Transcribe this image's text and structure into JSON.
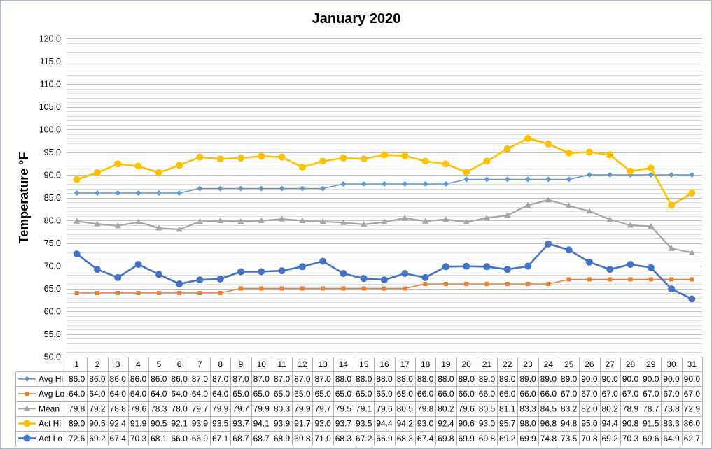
{
  "chart_data": {
    "type": "line",
    "title": "January 2020",
    "xlabel": "",
    "ylabel": "Temperature °F",
    "ylim": [
      50,
      120
    ],
    "ytick_labels": [
      "50.0",
      "55.0",
      "60.0",
      "65.0",
      "70.0",
      "75.0",
      "80.0",
      "85.0",
      "90.0",
      "95.0",
      "100.0",
      "105.0",
      "110.0",
      "115.0",
      "120.0"
    ],
    "grid": {
      "major": true,
      "minor": true
    },
    "data_table": true,
    "legend_placement": "bottom",
    "categories": [
      "1",
      "2",
      "3",
      "4",
      "5",
      "6",
      "7",
      "8",
      "9",
      "10",
      "11",
      "12",
      "13",
      "14",
      "15",
      "16",
      "17",
      "18",
      "19",
      "20",
      "21",
      "22",
      "23",
      "24",
      "25",
      "26",
      "27",
      "28",
      "29",
      "30",
      "31"
    ],
    "series": [
      {
        "name": "Avg Hi",
        "color": "#5B9BD5",
        "marker": "diamond",
        "values": [
          86.0,
          86.0,
          86.0,
          86.0,
          86.0,
          86.0,
          87.0,
          87.0,
          87.0,
          87.0,
          87.0,
          87.0,
          87.0,
          88.0,
          88.0,
          88.0,
          88.0,
          88.0,
          88.0,
          89.0,
          89.0,
          89.0,
          89.0,
          89.0,
          89.0,
          90.0,
          90.0,
          90.0,
          90.0,
          90.0,
          90.0
        ]
      },
      {
        "name": "Avg Lo",
        "color": "#ED7D31",
        "marker": "square",
        "values": [
          64.0,
          64.0,
          64.0,
          64.0,
          64.0,
          64.0,
          64.0,
          64.0,
          65.0,
          65.0,
          65.0,
          65.0,
          65.0,
          65.0,
          65.0,
          65.0,
          65.0,
          66.0,
          66.0,
          66.0,
          66.0,
          66.0,
          66.0,
          66.0,
          67.0,
          67.0,
          67.0,
          67.0,
          67.0,
          67.0,
          67.0
        ]
      },
      {
        "name": "Mean",
        "color": "#A5A5A5",
        "marker": "triangle",
        "values": [
          79.8,
          79.2,
          78.8,
          79.6,
          78.3,
          78.0,
          79.7,
          79.9,
          79.7,
          79.9,
          80.3,
          79.9,
          79.7,
          79.5,
          79.1,
          79.6,
          80.5,
          79.8,
          80.2,
          79.6,
          80.5,
          81.1,
          83.3,
          84.5,
          83.2,
          82.0,
          80.2,
          78.9,
          78.7,
          73.8,
          72.9
        ]
      },
      {
        "name": "Act Hi",
        "color": "#FFC000",
        "marker": "circle",
        "values": [
          89.0,
          90.5,
          92.4,
          91.9,
          90.5,
          92.1,
          93.9,
          93.5,
          93.7,
          94.1,
          93.9,
          91.7,
          93.0,
          93.7,
          93.5,
          94.4,
          94.2,
          93.0,
          92.4,
          90.6,
          93.0,
          95.7,
          98.0,
          96.8,
          94.8,
          95.0,
          94.4,
          90.8,
          91.5,
          83.3,
          86.0
        ]
      },
      {
        "name": "Act Lo",
        "color": "#4472C4",
        "marker": "circle",
        "values": [
          72.6,
          69.2,
          67.4,
          70.3,
          68.1,
          66.0,
          66.9,
          67.1,
          68.7,
          68.7,
          68.9,
          69.8,
          71.0,
          68.3,
          67.2,
          66.9,
          68.3,
          67.4,
          69.8,
          69.9,
          69.8,
          69.2,
          69.9,
          74.8,
          73.5,
          70.8,
          69.2,
          70.3,
          69.6,
          64.9,
          62.7
        ]
      }
    ]
  }
}
